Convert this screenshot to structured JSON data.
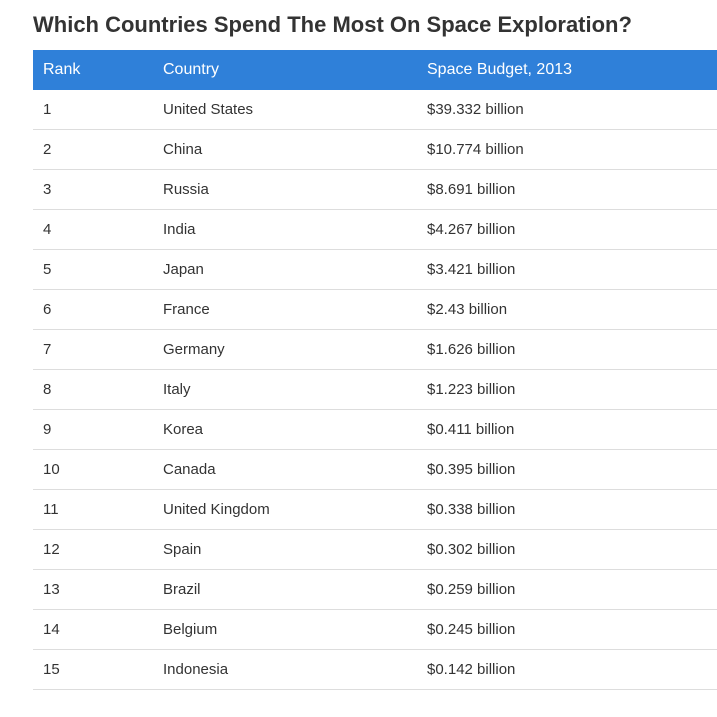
{
  "title": "Which Countries Spend The Most On Space Exploration?",
  "chart_data": {
    "type": "table",
    "columns": [
      "Rank",
      "Country",
      "Space Budget, 2013"
    ],
    "rows": [
      [
        "1",
        "United States",
        "$39.332 billion"
      ],
      [
        "2",
        "China",
        "$10.774 billion"
      ],
      [
        "3",
        "Russia",
        "$8.691 billion"
      ],
      [
        "4",
        "India",
        "$4.267 billion"
      ],
      [
        "5",
        "Japan",
        "$3.421 billion"
      ],
      [
        "6",
        "France",
        "$2.43 billion"
      ],
      [
        "7",
        "Germany",
        "$1.626 billion"
      ],
      [
        "8",
        "Italy",
        "$1.223 billion"
      ],
      [
        "9",
        "Korea",
        "$0.411 billion"
      ],
      [
        "10",
        "Canada",
        "$0.395 billion"
      ],
      [
        "11",
        "United Kingdom",
        "$0.338 billion"
      ],
      [
        "12",
        "Spain",
        "$0.302 billion"
      ],
      [
        "13",
        "Brazil",
        "$0.259 billion"
      ],
      [
        "14",
        "Belgium",
        "$0.245 billion"
      ],
      [
        "15",
        "Indonesia",
        "$0.142 billion"
      ]
    ]
  },
  "colors": {
    "header_bg": "#2f80d9",
    "header_text": "#ffffff",
    "row_border": "#dddddd",
    "text": "#333333"
  }
}
